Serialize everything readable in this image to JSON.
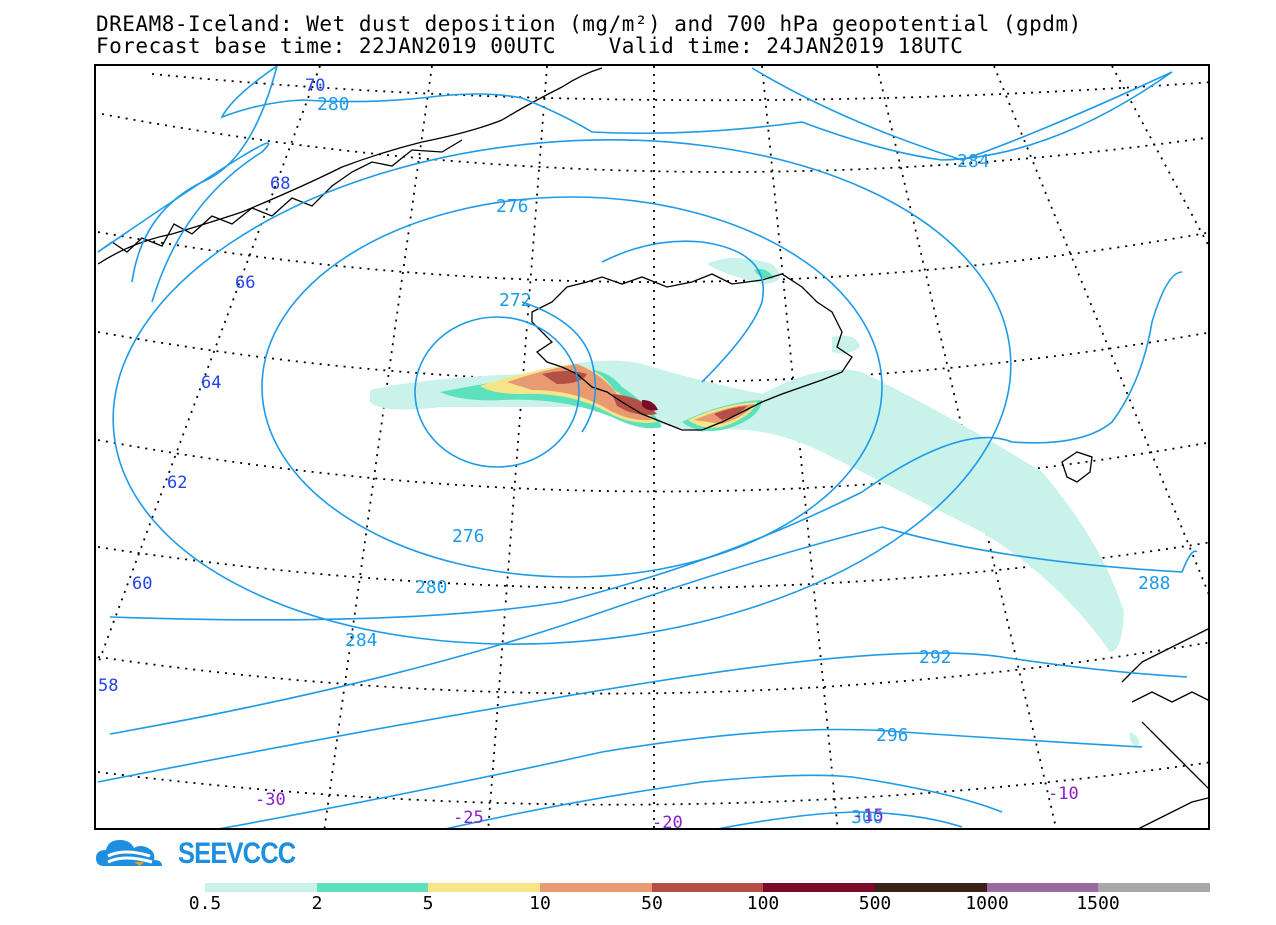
{
  "title": {
    "line1": "DREAM8-Iceland: Wet dust deposition (mg/m²) and 700 hPa geopotential (gpdm)",
    "line2": "Forecast base time: 22JAN2019 00UTC    Valid time: 24JAN2019 18UTC"
  },
  "logo": {
    "text": "SEEVCCC",
    "icon": "cloud-logo-icon"
  },
  "map": {
    "latitude_labels": [
      "70",
      "68",
      "66",
      "64",
      "62",
      "60",
      "58"
    ],
    "longitude_labels": [
      "-30",
      "-25",
      "-20",
      "-15",
      "-10"
    ],
    "contour_labels": [
      "280",
      "284",
      "276",
      "272",
      "276",
      "280",
      "284",
      "288",
      "292",
      "296",
      "300"
    ],
    "colors": {
      "contour": "#1e9be8",
      "lat_label": "#2244ee",
      "lon_label": "#8822cc"
    }
  },
  "legend": {
    "labels": [
      "0.5",
      "2",
      "5",
      "10",
      "50",
      "100",
      "500",
      "1000",
      "1500"
    ],
    "colors": [
      "#c8f2ea",
      "#5de0bc",
      "#f7e58a",
      "#e89a72",
      "#b34f45",
      "#7a0a2a",
      "#3a2218",
      "#9a6a9e",
      "#a8a8a8"
    ]
  }
}
